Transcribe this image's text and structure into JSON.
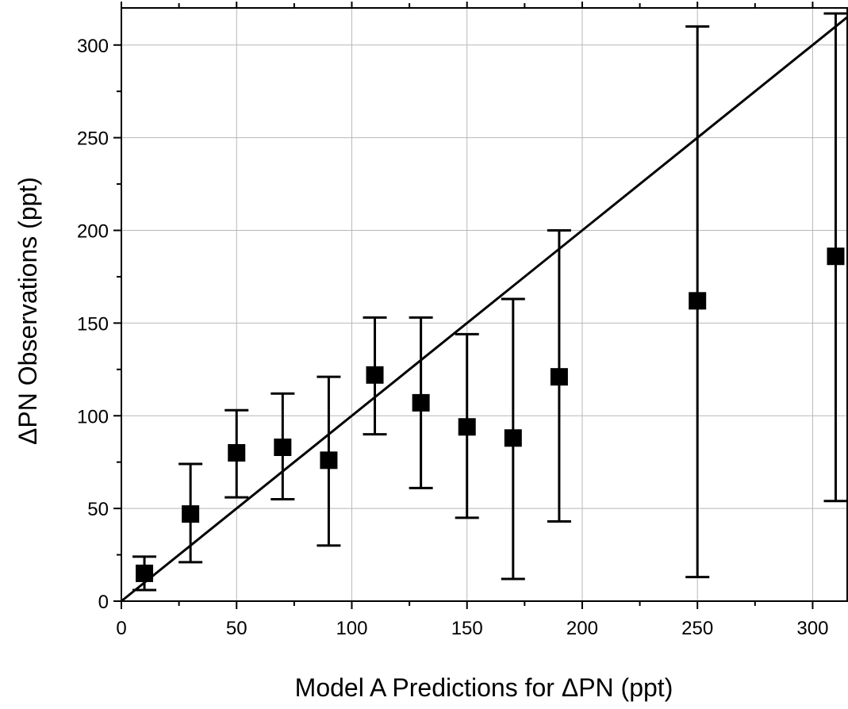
{
  "chart_data": {
    "type": "scatter",
    "title": "",
    "xlabel": "Model A Predictions for ΔPN (ppt)",
    "ylabel": "ΔPN Observations (ppt)",
    "xlim": [
      0,
      315
    ],
    "ylim": [
      0,
      320
    ],
    "x_ticks": [
      0,
      50,
      100,
      150,
      200,
      250,
      300
    ],
    "y_ticks": [
      0,
      50,
      100,
      150,
      200,
      250,
      300
    ],
    "x_tick_labels": [
      "0",
      "50",
      "100",
      "150",
      "200",
      "250",
      "300"
    ],
    "y_tick_labels": [
      "0",
      "50",
      "100",
      "150",
      "200",
      "250",
      "300"
    ],
    "grid": true,
    "legend": "none",
    "reference_line": {
      "slope": 1,
      "intercept": 0
    },
    "series": [
      {
        "marker": "square",
        "color": "#000000",
        "points": [
          {
            "x": 10,
            "y": 15,
            "err_low": 6,
            "err_high": 24
          },
          {
            "x": 30,
            "y": 47,
            "err_low": 21,
            "err_high": 74
          },
          {
            "x": 50,
            "y": 80,
            "err_low": 56,
            "err_high": 103
          },
          {
            "x": 70,
            "y": 83,
            "err_low": 55,
            "err_high": 112
          },
          {
            "x": 90,
            "y": 76,
            "err_low": 30,
            "err_high": 121
          },
          {
            "x": 110,
            "y": 122,
            "err_low": 90,
            "err_high": 153
          },
          {
            "x": 130,
            "y": 107,
            "err_low": 61,
            "err_high": 153
          },
          {
            "x": 150,
            "y": 94,
            "err_low": 45,
            "err_high": 144
          },
          {
            "x": 170,
            "y": 88,
            "err_low": 12,
            "err_high": 163
          },
          {
            "x": 190,
            "y": 121,
            "err_low": 43,
            "err_high": 200
          },
          {
            "x": 250,
            "y": 162,
            "err_low": 13,
            "err_high": 310
          },
          {
            "x": 310,
            "y": 186,
            "err_low": 54,
            "err_high": 317
          }
        ]
      }
    ]
  }
}
